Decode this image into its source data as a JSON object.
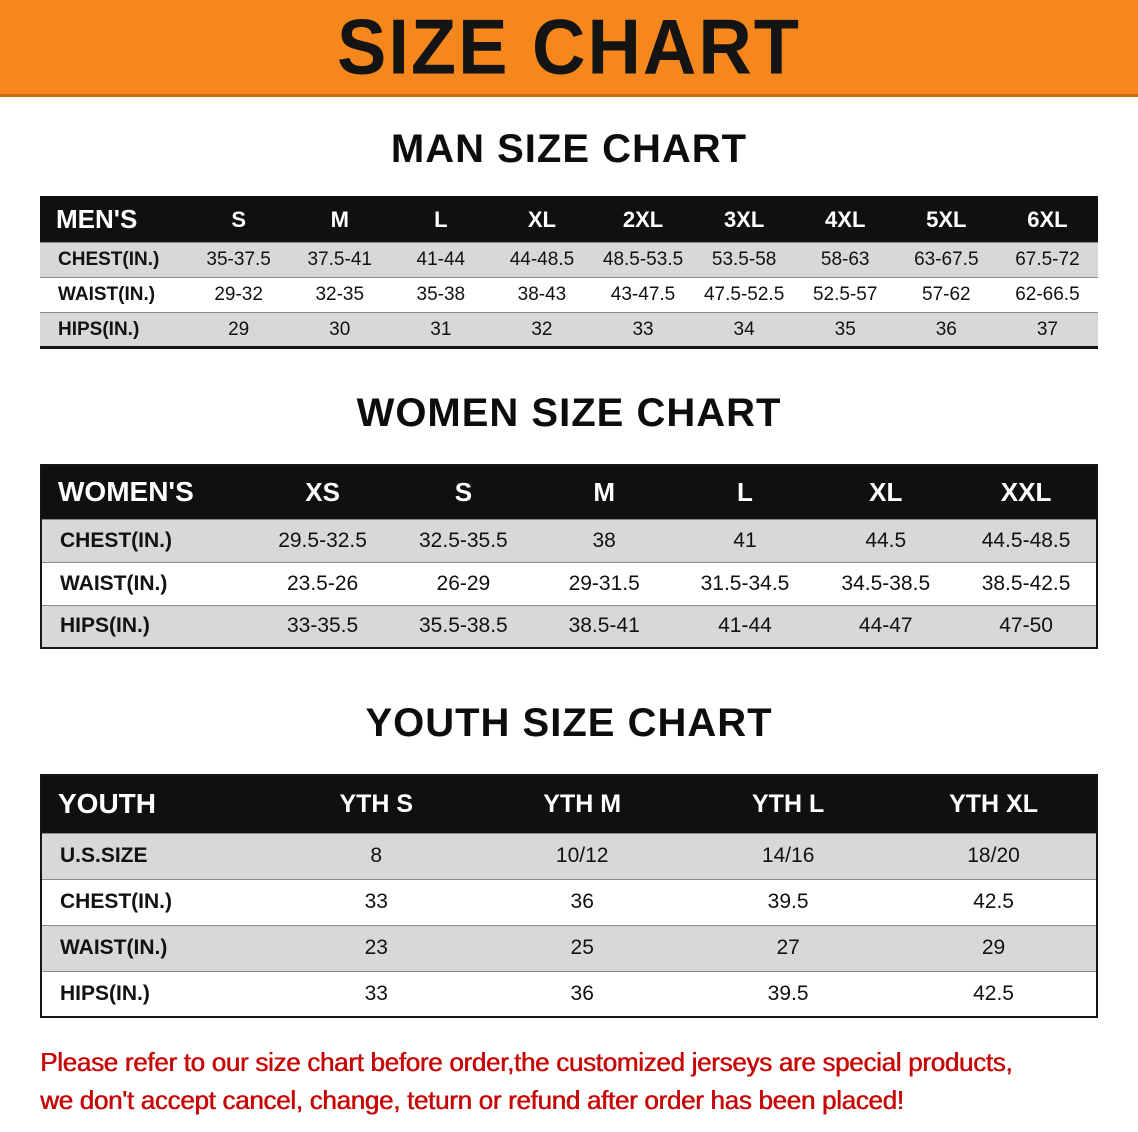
{
  "banner": {
    "title": "SIZE CHART"
  },
  "colors": {
    "banner_bg": "#f6871d",
    "table_header_bg": "#101010",
    "row_shade": "#d8d8d8",
    "disclaimer_red": "#c70606"
  },
  "sections": [
    {
      "id": "men",
      "heading": "MAN SIZE CHART",
      "table": {
        "columns": [
          "MEN'S",
          "S",
          "M",
          "L",
          "XL",
          "2XL",
          "3XL",
          "4XL",
          "5XL",
          "6XL"
        ],
        "rows": [
          {
            "label": "CHEST(IN.)",
            "values": [
              "35-37.5",
              "37.5-41",
              "41-44",
              "44-48.5",
              "48.5-53.5",
              "53.5-58",
              "58-63",
              "63-67.5",
              "67.5-72"
            ]
          },
          {
            "label": "WAIST(IN.)",
            "values": [
              "29-32",
              "32-35",
              "35-38",
              "38-43",
              "43-47.5",
              "47.5-52.5",
              "52.5-57",
              "57-62",
              "62-66.5"
            ]
          },
          {
            "label": "HIPS(IN.)",
            "values": [
              "29",
              "30",
              "31",
              "32",
              "33",
              "34",
              "35",
              "36",
              "37"
            ]
          }
        ]
      }
    },
    {
      "id": "women",
      "heading": "WOMEN SIZE CHART",
      "table": {
        "columns": [
          "WOMEN'S",
          "XS",
          "S",
          "M",
          "L",
          "XL",
          "XXL"
        ],
        "rows": [
          {
            "label": "CHEST(IN.)",
            "values": [
              "29.5-32.5",
              "32.5-35.5",
              "38",
              "41",
              "44.5",
              "44.5-48.5"
            ]
          },
          {
            "label": "WAIST(IN.)",
            "values": [
              "23.5-26",
              "26-29",
              "29-31.5",
              "31.5-34.5",
              "34.5-38.5",
              "38.5-42.5"
            ]
          },
          {
            "label": "HIPS(IN.)",
            "values": [
              "33-35.5",
              "35.5-38.5",
              "38.5-41",
              "41-44",
              "44-47",
              "47-50"
            ]
          }
        ]
      }
    },
    {
      "id": "youth",
      "heading": "YOUTH SIZE CHART",
      "table": {
        "columns": [
          "YOUTH",
          "YTH S",
          "YTH M",
          "YTH L",
          "YTH XL"
        ],
        "rows": [
          {
            "label": "U.S.SIZE",
            "values": [
              "8",
              "10/12",
              "14/16",
              "18/20"
            ]
          },
          {
            "label": "CHEST(IN.)",
            "values": [
              "33",
              "36",
              "39.5",
              "42.5"
            ]
          },
          {
            "label": "WAIST(IN.)",
            "values": [
              "23",
              "25",
              "27",
              "29"
            ]
          },
          {
            "label": "HIPS(IN.)",
            "values": [
              "33",
              "36",
              "39.5",
              "42.5"
            ]
          }
        ]
      }
    }
  ],
  "disclaimer": {
    "line1": "Please refer to our size chart before order,the customized jerseys are special products,",
    "line2": "we don't accept cancel, change, teturn or refund after order has been placed!"
  }
}
